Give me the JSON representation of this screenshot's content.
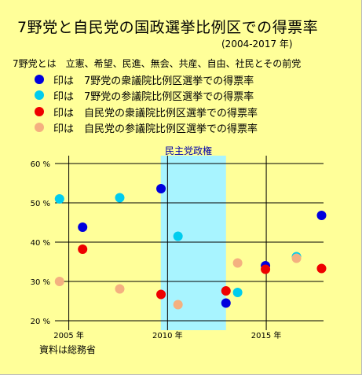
{
  "title": "7野党と自民党の国政選挙比例区での得票率",
  "subtitle": "(2004-2017 年)",
  "description": "7野党とは　立憲、希望、民進、無会、共産、自由、社民とその前党",
  "legend": [
    {
      "text": "印は　7野党の衆議院比例区選挙での得票率",
      "color": "#0000dd"
    },
    {
      "text": "印は　7野党の参議院比例区選挙での得票率",
      "color": "#00ccee"
    },
    {
      "text": "印は　自民党の衆議院比例区選挙での得票率",
      "color": "#ee0000"
    },
    {
      "text": "印は　自民党の参議院比例区選挙での得票率",
      "color": "#f4b080"
    }
  ],
  "period_label": "民主党政権",
  "source": "資料は総務省",
  "chart_data": {
    "type": "scatter",
    "title": "7野党と自民党の国政選挙比例区での得票率",
    "subtitle": "(2004-2017 年)",
    "ylim": [
      20,
      60
    ],
    "y_ticks": [
      20,
      30,
      40,
      50,
      60
    ],
    "y_tick_labels": [
      "20 %",
      "30 %",
      "40 %",
      "50 %",
      "60 %"
    ],
    "x_ticks": [
      2005,
      2010,
      2015
    ],
    "x_tick_labels": [
      "2005 年",
      "2010 年",
      "2015 年"
    ],
    "xlim": [
      2004.3,
      2017.9
    ],
    "grid": true,
    "shaded_period": {
      "label": "民主党政権",
      "start": 2009.66,
      "end": 2012.96,
      "color": "#a8f4ff"
    },
    "series": [
      {
        "name": "7野党の衆議院比例区選挙での得票率",
        "color": "#0000dd",
        "points": [
          {
            "x": 2005.7,
            "y": 43.8
          },
          {
            "x": 2009.67,
            "y": 53.6
          },
          {
            "x": 2012.96,
            "y": 24.5
          },
          {
            "x": 2014.96,
            "y": 34.0
          },
          {
            "x": 2017.8,
            "y": 46.8
          }
        ]
      },
      {
        "name": "7野党の参議院比例区選挙での得票率",
        "color": "#00ccee",
        "points": [
          {
            "x": 2004.53,
            "y": 51.0
          },
          {
            "x": 2007.58,
            "y": 51.3
          },
          {
            "x": 2010.53,
            "y": 41.5
          },
          {
            "x": 2013.55,
            "y": 27.2
          },
          {
            "x": 2016.53,
            "y": 36.3
          }
        ]
      },
      {
        "name": "自民党の衆議院比例区選挙での得票率",
        "color": "#ee0000",
        "points": [
          {
            "x": 2005.7,
            "y": 38.2
          },
          {
            "x": 2009.67,
            "y": 26.7
          },
          {
            "x": 2012.96,
            "y": 27.6
          },
          {
            "x": 2014.96,
            "y": 33.1
          },
          {
            "x": 2017.8,
            "y": 33.3
          }
        ]
      },
      {
        "name": "自民党の参議院比例区選挙での得票率",
        "color": "#f4b080",
        "points": [
          {
            "x": 2004.53,
            "y": 30.0
          },
          {
            "x": 2007.58,
            "y": 28.1
          },
          {
            "x": 2010.53,
            "y": 24.1
          },
          {
            "x": 2013.55,
            "y": 34.7
          },
          {
            "x": 2016.53,
            "y": 35.9
          }
        ]
      }
    ]
  }
}
